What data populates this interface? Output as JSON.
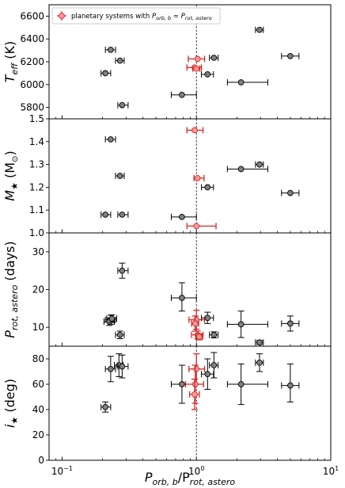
{
  "chart_data": {
    "type": "scatter",
    "x_scale": "log",
    "xlim": [
      0.08,
      10
    ],
    "xlabel_main": "P",
    "xlabel_sub1": "orb, b",
    "xlabel_mid": "/P",
    "xlabel_sub2": "rot, astero",
    "xticks": [
      {
        "value": 0.1,
        "base": "10",
        "exp": "−1"
      },
      {
        "value": 1,
        "base": "10",
        "exp": "0"
      },
      {
        "value": 10,
        "base": "10",
        "exp": "1"
      }
    ],
    "reference_line_x": 1,
    "legend": {
      "placement": "top-left",
      "text_pre": "planetary systems with ",
      "sym1": "P",
      "sub1": "orb, b",
      "eq": " ≃ ",
      "sym2": "P",
      "sub2": "rot, astero"
    },
    "colors": {
      "gray_marker": "#808080",
      "highlight_fill": "#ff9999",
      "highlight_edge": "#d62728",
      "edge": "#000000"
    },
    "panels": [
      {
        "id": "teff",
        "ylabel_main": "T",
        "ylabel_sub": "eff",
        "ylabel_unit": " (K)",
        "ylim": [
          5700,
          6700
        ],
        "yticks": [
          {
            "value": 5800,
            "label": "5800"
          },
          {
            "value": 6000,
            "label": "6000"
          },
          {
            "value": 6200,
            "label": "6200"
          },
          {
            "value": 6400,
            "label": "6400"
          },
          {
            "value": 6600,
            "label": "6600"
          }
        ],
        "points": [
          {
            "x": 0.23,
            "xerr": [
              0.02,
              0.02
            ],
            "y": 6305,
            "yerr": [
              0,
              0
            ],
            "hl": false
          },
          {
            "x": 0.27,
            "xerr": [
              0.02,
              0.02
            ],
            "y": 6210,
            "yerr": [
              0,
              0
            ],
            "hl": false
          },
          {
            "x": 0.21,
            "xerr": [
              0.015,
              0.02
            ],
            "y": 6100,
            "yerr": [
              0,
              0
            ],
            "hl": false
          },
          {
            "x": 0.28,
            "xerr": [
              0.02,
              0.03
            ],
            "y": 5820,
            "yerr": [
              0,
              0
            ],
            "hl": false
          },
          {
            "x": 0.78,
            "xerr": [
              0.13,
              0.22
            ],
            "y": 5910,
            "yerr": [
              0,
              0
            ],
            "hl": false
          },
          {
            "x": 1.02,
            "xerr": [
              0.15,
              0.13
            ],
            "y": 6225,
            "yerr": [
              0,
              0
            ],
            "hl": true
          },
          {
            "x": 0.97,
            "xerr": [
              0.12,
              0.12
            ],
            "y": 6150,
            "yerr": [
              0,
              0
            ],
            "hl": true
          },
          {
            "x": 1.0,
            "xerr": [
              0.06,
              0.06
            ],
            "y": 6140,
            "yerr": [
              0,
              0
            ],
            "hl": true
          },
          {
            "x": 1.21,
            "xerr": [
              0.12,
              0.13
            ],
            "y": 6090,
            "yerr": [
              0,
              0
            ],
            "hl": false
          },
          {
            "x": 1.35,
            "xerr": [
              0.1,
              0.1
            ],
            "y": 6235,
            "yerr": [
              0,
              0
            ],
            "hl": false
          },
          {
            "x": 2.15,
            "xerr": [
              0.45,
              1.25
            ],
            "y": 6020,
            "yerr": [
              0,
              0
            ],
            "hl": false
          },
          {
            "x": 2.95,
            "xerr": [
              0.2,
              0.2
            ],
            "y": 6480,
            "yerr": [
              0,
              0
            ],
            "hl": false
          },
          {
            "x": 5.0,
            "xerr": [
              0.7,
              0.8
            ],
            "y": 6250,
            "yerr": [
              0,
              0
            ],
            "hl": false
          }
        ]
      },
      {
        "id": "mass",
        "ylabel_main": "M",
        "ylabel_sub": "★",
        "ylabel_unit": " (M",
        "ylabel_sun_sub": "⊙",
        "ylabel_close": ")",
        "ylim": [
          1.0,
          1.5
        ],
        "yticks": [
          {
            "value": 1.0,
            "label": "1.0"
          },
          {
            "value": 1.1,
            "label": "1.1"
          },
          {
            "value": 1.2,
            "label": "1.2"
          },
          {
            "value": 1.3,
            "label": "1.3"
          },
          {
            "value": 1.4,
            "label": "1.4"
          },
          {
            "value": 1.5,
            "label": "1.5"
          }
        ],
        "points": [
          {
            "x": 0.23,
            "xerr": [
              0.02,
              0.02
            ],
            "y": 1.41,
            "yerr": [
              0,
              0
            ],
            "hl": false
          },
          {
            "x": 0.27,
            "xerr": [
              0.02,
              0.02
            ],
            "y": 1.25,
            "yerr": [
              0,
              0
            ],
            "hl": false
          },
          {
            "x": 0.21,
            "xerr": [
              0.015,
              0.02
            ],
            "y": 1.08,
            "yerr": [
              0,
              0
            ],
            "hl": false
          },
          {
            "x": 0.28,
            "xerr": [
              0.02,
              0.03
            ],
            "y": 1.08,
            "yerr": [
              0,
              0
            ],
            "hl": false
          },
          {
            "x": 0.78,
            "xerr": [
              0.13,
              0.22
            ],
            "y": 1.07,
            "yerr": [
              0,
              0
            ],
            "hl": false
          },
          {
            "x": 0.97,
            "xerr": [
              0.12,
              0.15
            ],
            "y": 1.45,
            "yerr": [
              0,
              0
            ],
            "hl": true
          },
          {
            "x": 1.02,
            "xerr": [
              0.06,
              0.12
            ],
            "y": 1.24,
            "yerr": [
              0,
              0
            ],
            "hl": true
          },
          {
            "x": 1.0,
            "xerr": [
              0.15,
              0.4
            ],
            "y": 1.03,
            "yerr": [
              0,
              0
            ],
            "hl": true
          },
          {
            "x": 1.21,
            "xerr": [
              0.12,
              0.13
            ],
            "y": 1.2,
            "yerr": [
              0,
              0
            ],
            "hl": false
          },
          {
            "x": 2.15,
            "xerr": [
              0.45,
              1.25
            ],
            "y": 1.28,
            "yerr": [
              0,
              0
            ],
            "hl": false
          },
          {
            "x": 2.95,
            "xerr": [
              0.2,
              0.2
            ],
            "y": 1.3,
            "yerr": [
              0,
              0
            ],
            "hl": false
          },
          {
            "x": 5.0,
            "xerr": [
              0.7,
              0.8
            ],
            "y": 1.175,
            "yerr": [
              0,
              0
            ],
            "hl": false
          }
        ]
      },
      {
        "id": "prot",
        "ylabel_main": "P",
        "ylabel_sub": "rot, astero",
        "ylabel_unit": " (days)",
        "ylim": [
          5,
          35
        ],
        "yticks": [
          {
            "value": 10,
            "label": "10"
          },
          {
            "value": 20,
            "label": "20"
          },
          {
            "value": 30,
            "label": "30"
          }
        ],
        "points": [
          {
            "x": 0.23,
            "xerr": [
              0.02,
              0.02
            ],
            "y": 12.0,
            "yerr": [
              1.2,
              1.2
            ],
            "hl": false
          },
          {
            "x": 0.225,
            "xerr": [
              0.02,
              0.02
            ],
            "y": 11.5,
            "yerr": [
              1.0,
              1.0
            ],
            "hl": false
          },
          {
            "x": 0.235,
            "xerr": [
              0.02,
              0.02
            ],
            "y": 12.3,
            "yerr": [
              1.0,
              1.0
            ],
            "hl": false
          },
          {
            "x": 0.27,
            "xerr": [
              0.02,
              0.02
            ],
            "y": 8.0,
            "yerr": [
              1.0,
              1.0
            ],
            "hl": false
          },
          {
            "x": 0.28,
            "xerr": [
              0.02,
              0.03
            ],
            "y": 25.0,
            "yerr": [
              2.0,
              2.0
            ],
            "hl": false
          },
          {
            "x": 0.78,
            "xerr": [
              0.13,
              0.22
            ],
            "y": 17.8,
            "yerr": [
              3.5,
              4.0
            ],
            "hl": false
          },
          {
            "x": 1.0,
            "xerr": [
              0.12,
              0.15
            ],
            "y": 12.0,
            "yerr": [
              2.5,
              2.5
            ],
            "hl": true
          },
          {
            "x": 0.98,
            "xerr": [
              0.06,
              0.06
            ],
            "y": 11.0,
            "yerr": [
              2.0,
              2.0
            ],
            "hl": true
          },
          {
            "x": 1.02,
            "xerr": [
              0.1,
              0.1
            ],
            "y": 8.0,
            "yerr": [
              1.0,
              1.0
            ],
            "hl": true
          },
          {
            "x": 1.05,
            "xerr": [
              0.06,
              0.06
            ],
            "y": 7.5,
            "yerr": [
              0.8,
              0.8
            ],
            "hl": true
          },
          {
            "x": 1.21,
            "xerr": [
              0.12,
              0.13
            ],
            "y": 12.5,
            "yerr": [
              1.5,
              1.5
            ],
            "hl": false
          },
          {
            "x": 1.35,
            "xerr": [
              0.1,
              0.1
            ],
            "y": 8.0,
            "yerr": [
              0.8,
              0.8
            ],
            "hl": false
          },
          {
            "x": 2.15,
            "xerr": [
              0.45,
              1.25
            ],
            "y": 10.8,
            "yerr": [
              3.5,
              3.5
            ],
            "hl": false
          },
          {
            "x": 2.95,
            "xerr": [
              0.2,
              0.2
            ],
            "y": 6.0,
            "yerr": [
              0.5,
              0.5
            ],
            "hl": false
          },
          {
            "x": 5.0,
            "xerr": [
              0.7,
              0.8
            ],
            "y": 11.0,
            "yerr": [
              2.0,
              2.0
            ],
            "hl": false
          }
        ]
      },
      {
        "id": "incl",
        "ylabel_main": "i",
        "ylabel_sub": "★",
        "ylabel_unit": " (deg)",
        "ylim": [
          0,
          90
        ],
        "yticks": [
          {
            "value": 0,
            "label": "0"
          },
          {
            "value": 20,
            "label": "20"
          },
          {
            "value": 40,
            "label": "40"
          },
          {
            "value": 60,
            "label": "60"
          },
          {
            "value": 80,
            "label": "80"
          }
        ],
        "points": [
          {
            "x": 0.21,
            "xerr": [
              0.015,
              0.02
            ],
            "y": 42,
            "yerr": [
              4,
              4
            ],
            "hl": false
          },
          {
            "x": 0.23,
            "xerr": [
              0.02,
              0.02
            ],
            "y": 72,
            "yerr": [
              10,
              10
            ],
            "hl": false
          },
          {
            "x": 0.265,
            "xerr": [
              0.02,
              0.02
            ],
            "y": 75,
            "yerr": [
              9,
              9
            ],
            "hl": false
          },
          {
            "x": 0.28,
            "xerr": [
              0.02,
              0.03
            ],
            "y": 74,
            "yerr": [
              9,
              9
            ],
            "hl": false
          },
          {
            "x": 0.78,
            "xerr": [
              0.13,
              0.22
            ],
            "y": 60,
            "yerr": [
              15,
              15
            ],
            "hl": false
          },
          {
            "x": 1.0,
            "xerr": [
              0.12,
              0.15
            ],
            "y": 72,
            "yerr": [
              12,
              12
            ],
            "hl": true
          },
          {
            "x": 0.98,
            "xerr": [
              0.15,
              0.15
            ],
            "y": 60,
            "yerr": [
              15,
              15
            ],
            "hl": true
          },
          {
            "x": 0.97,
            "xerr": [
              0.08,
              0.08
            ],
            "y": 52,
            "yerr": [
              12,
              12
            ],
            "hl": true
          },
          {
            "x": 1.21,
            "xerr": [
              0.12,
              0.13
            ],
            "y": 68,
            "yerr": [
              12,
              12
            ],
            "hl": false
          },
          {
            "x": 1.35,
            "xerr": [
              0.1,
              0.1
            ],
            "y": 75,
            "yerr": [
              10,
              10
            ],
            "hl": false
          },
          {
            "x": 2.15,
            "xerr": [
              0.45,
              1.25
            ],
            "y": 60,
            "yerr": [
              16,
              16
            ],
            "hl": false
          },
          {
            "x": 2.95,
            "xerr": [
              0.2,
              0.2
            ],
            "y": 77,
            "yerr": [
              7,
              7
            ],
            "hl": false
          },
          {
            "x": 5.0,
            "xerr": [
              0.7,
              0.8
            ],
            "y": 59,
            "yerr": [
              13,
              17
            ],
            "hl": false
          }
        ]
      }
    ]
  }
}
